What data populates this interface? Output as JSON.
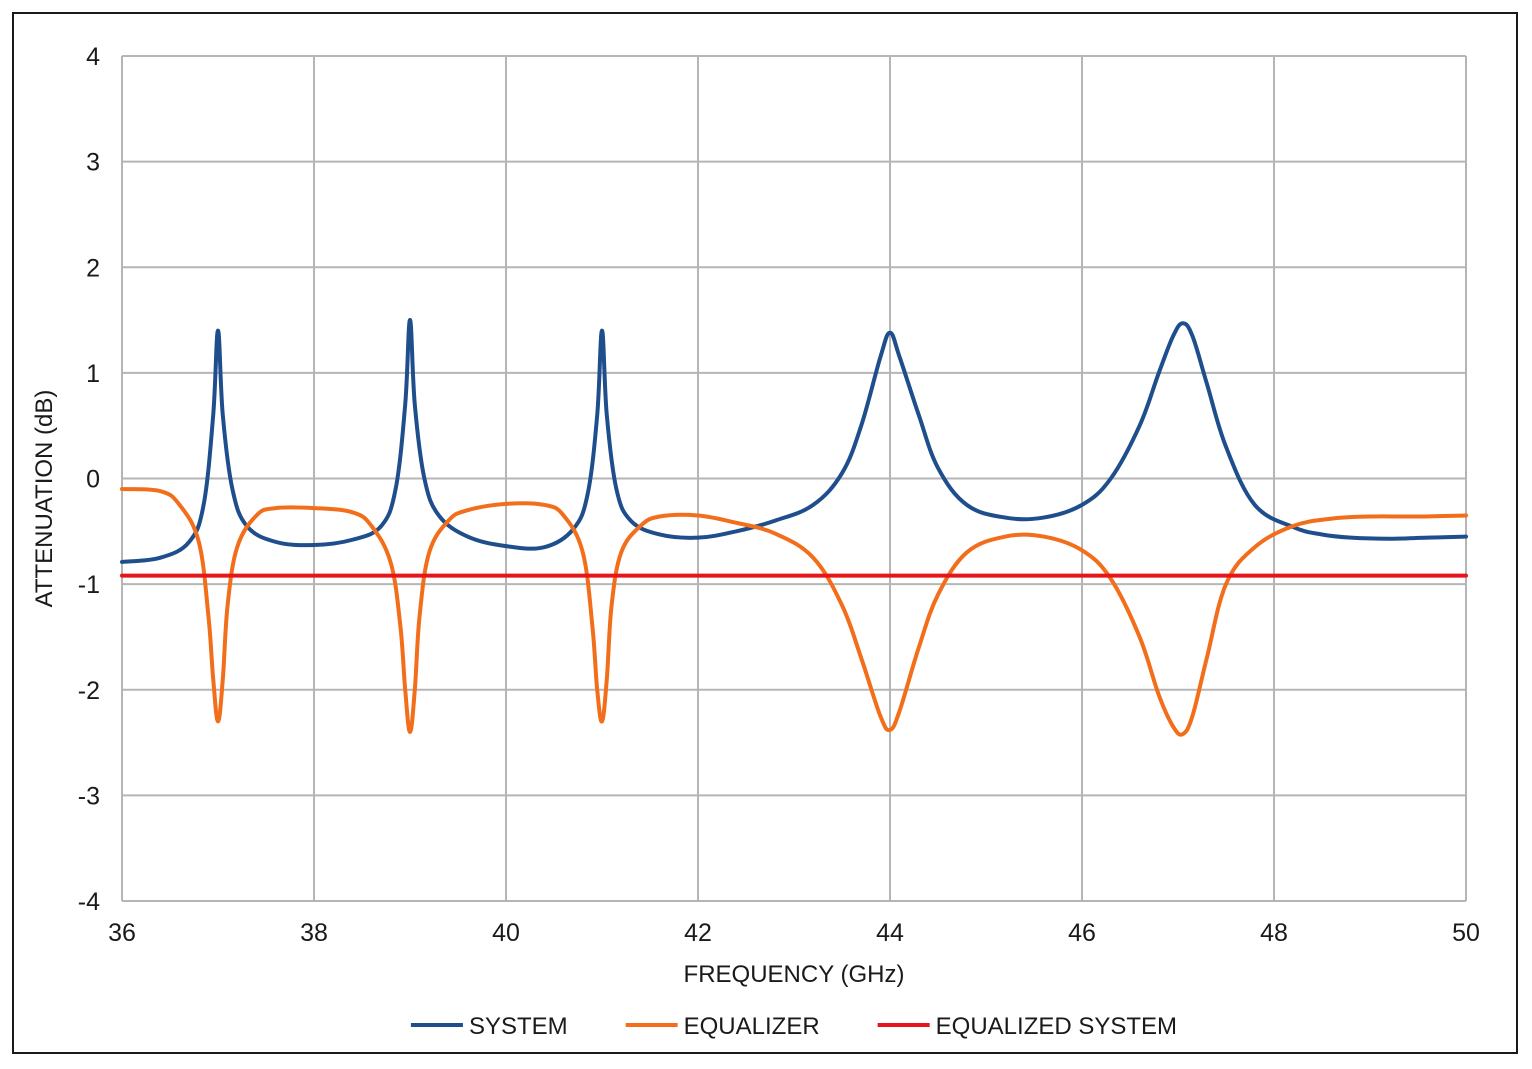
{
  "chart_data": {
    "type": "line",
    "xlabel": "FREQUENCY (GHz)",
    "ylabel": "ATTENUATION (dB)",
    "xlim": [
      36,
      50
    ],
    "ylim": [
      -4,
      4
    ],
    "x_ticks": [
      36,
      38,
      40,
      42,
      44,
      46,
      48,
      50
    ],
    "y_ticks": [
      4,
      3,
      2,
      1,
      0,
      -1,
      -2,
      -3,
      -4
    ],
    "x_tick_labels": [
      "36",
      "38",
      "40",
      "42",
      "44",
      "46",
      "48",
      "50"
    ],
    "y_tick_labels": [
      "4",
      "3",
      "2",
      "1",
      "0",
      "-1",
      "-2",
      "-3",
      "-4"
    ],
    "grid": true,
    "legend_position": "bottom",
    "series": [
      {
        "name": "SYSTEM",
        "color": "#1f4e8c",
        "x": [
          36.0,
          36.4,
          36.7,
          36.85,
          36.95,
          37.0,
          37.05,
          37.15,
          37.3,
          37.6,
          38.0,
          38.4,
          38.7,
          38.85,
          38.95,
          39.0,
          39.05,
          39.15,
          39.3,
          39.6,
          40.0,
          40.4,
          40.7,
          40.85,
          40.95,
          41.0,
          41.05,
          41.15,
          41.3,
          41.6,
          42.0,
          42.4,
          42.8,
          43.2,
          43.5,
          43.7,
          43.9,
          44.0,
          44.1,
          44.3,
          44.5,
          44.8,
          45.2,
          45.6,
          46.0,
          46.3,
          46.6,
          46.8,
          46.95,
          47.05,
          47.15,
          47.3,
          47.5,
          47.8,
          48.2,
          48.5,
          48.8,
          49.2,
          49.6,
          50.0
        ],
        "values": [
          -0.79,
          -0.75,
          -0.6,
          -0.25,
          0.6,
          1.4,
          0.6,
          -0.1,
          -0.45,
          -0.6,
          -0.63,
          -0.58,
          -0.45,
          -0.1,
          0.7,
          1.5,
          0.7,
          0.0,
          -0.35,
          -0.55,
          -0.64,
          -0.65,
          -0.48,
          -0.15,
          0.6,
          1.4,
          0.6,
          -0.1,
          -0.4,
          -0.53,
          -0.56,
          -0.5,
          -0.4,
          -0.25,
          0.05,
          0.5,
          1.15,
          1.38,
          1.15,
          0.6,
          0.1,
          -0.25,
          -0.37,
          -0.37,
          -0.25,
          0.0,
          0.5,
          1.0,
          1.35,
          1.47,
          1.35,
          0.9,
          0.3,
          -0.25,
          -0.46,
          -0.53,
          -0.56,
          -0.57,
          -0.56,
          -0.55
        ]
      },
      {
        "name": "EQUALIZER",
        "color": "#f26e1b",
        "x": [
          36.0,
          36.4,
          36.6,
          36.8,
          36.9,
          36.95,
          37.0,
          37.05,
          37.1,
          37.2,
          37.4,
          37.6,
          38.0,
          38.4,
          38.6,
          38.8,
          38.9,
          38.95,
          39.0,
          39.05,
          39.1,
          39.2,
          39.4,
          39.6,
          40.0,
          40.4,
          40.6,
          40.8,
          40.9,
          40.95,
          41.0,
          41.05,
          41.1,
          41.2,
          41.4,
          41.6,
          42.0,
          42.4,
          42.8,
          43.2,
          43.5,
          43.7,
          43.9,
          44.0,
          44.1,
          44.3,
          44.5,
          44.8,
          45.2,
          45.6,
          46.0,
          46.3,
          46.6,
          46.8,
          46.95,
          47.05,
          47.15,
          47.3,
          47.5,
          47.8,
          48.2,
          48.6,
          49.0,
          49.5,
          50.0
        ],
        "values": [
          -0.1,
          -0.12,
          -0.25,
          -0.6,
          -1.3,
          -1.9,
          -2.3,
          -1.9,
          -1.2,
          -0.65,
          -0.35,
          -0.28,
          -0.28,
          -0.32,
          -0.45,
          -0.8,
          -1.4,
          -2.0,
          -2.4,
          -2.0,
          -1.3,
          -0.7,
          -0.4,
          -0.3,
          -0.24,
          -0.25,
          -0.35,
          -0.7,
          -1.4,
          -2.0,
          -2.3,
          -1.9,
          -1.2,
          -0.7,
          -0.45,
          -0.36,
          -0.35,
          -0.42,
          -0.52,
          -0.75,
          -1.2,
          -1.7,
          -2.25,
          -2.38,
          -2.2,
          -1.6,
          -1.1,
          -0.7,
          -0.55,
          -0.55,
          -0.68,
          -0.95,
          -1.5,
          -2.05,
          -2.35,
          -2.42,
          -2.25,
          -1.7,
          -1.0,
          -0.65,
          -0.45,
          -0.38,
          -0.36,
          -0.36,
          -0.35
        ]
      },
      {
        "name": "EQUALIZED SYSTEM",
        "color": "#e8141b",
        "x": [
          36.0,
          50.0
        ],
        "values": [
          -0.92,
          -0.92
        ]
      }
    ]
  }
}
